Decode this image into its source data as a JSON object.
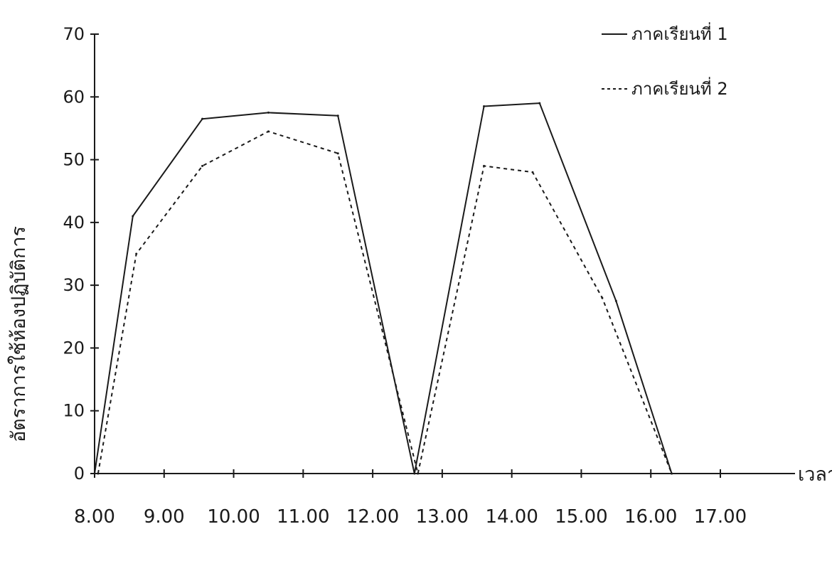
{
  "chart_data": {
    "type": "line",
    "title": "",
    "xlabel": "เวลา",
    "ylabel": "อัตราการใช้ห้องปฏิบัติการ",
    "x_ticks": [
      "8.00",
      "9.00",
      "10.00",
      "11.00",
      "12.00",
      "13.00",
      "14.00",
      "15.00",
      "16.00",
      "17.00"
    ],
    "y_ticks": [
      "0",
      "10",
      "20",
      "30",
      "40",
      "50",
      "60",
      "70"
    ],
    "xlim": [
      8,
      17
    ],
    "ylim": [
      0,
      70
    ],
    "grid": false,
    "legend": "top-right",
    "series": [
      {
        "name": "ภาคเรียนที่ 1",
        "line_style": "solid",
        "color": "#1a1a1a",
        "points": [
          [
            8.0,
            0
          ],
          [
            8.55,
            41
          ],
          [
            9.55,
            56.5
          ],
          [
            10.5,
            57.5
          ],
          [
            11.5,
            57
          ],
          [
            12.6,
            0
          ],
          [
            13.6,
            58.5
          ],
          [
            14.4,
            59
          ],
          [
            15.5,
            27.5
          ],
          [
            16.3,
            0
          ]
        ]
      },
      {
        "name": "ภาคเรียนที่ 2",
        "line_style": "dashed",
        "color": "#1a1a1a",
        "points": [
          [
            8.05,
            0
          ],
          [
            8.6,
            35
          ],
          [
            9.55,
            49
          ],
          [
            10.5,
            54.5
          ],
          [
            11.5,
            51
          ],
          [
            12.65,
            0
          ],
          [
            13.6,
            49
          ],
          [
            14.3,
            48
          ],
          [
            15.3,
            28
          ],
          [
            16.3,
            0
          ]
        ]
      }
    ]
  }
}
